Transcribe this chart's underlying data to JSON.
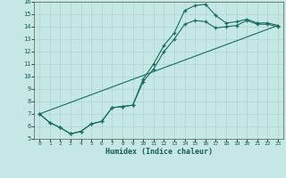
{
  "xlabel": "Humidex (Indice chaleur)",
  "ylabel": "",
  "bg_color": "#c5e8e5",
  "grid_color": "#afd4d0",
  "line_color": "#1a6b5e",
  "xlim": [
    -0.5,
    23.5
  ],
  "ylim": [
    5,
    16
  ],
  "xticks": [
    0,
    1,
    2,
    3,
    4,
    5,
    6,
    7,
    8,
    9,
    10,
    11,
    12,
    13,
    14,
    15,
    16,
    17,
    18,
    19,
    20,
    21,
    22,
    23
  ],
  "yticks": [
    5,
    6,
    7,
    8,
    9,
    10,
    11,
    12,
    13,
    14,
    15,
    16
  ],
  "line1_x": [
    0,
    1,
    2,
    3,
    4,
    5,
    6,
    7,
    8,
    9,
    10,
    11,
    12,
    13,
    14,
    15,
    16,
    17,
    18,
    19,
    20,
    21,
    22,
    23
  ],
  "line1_y": [
    7.0,
    6.3,
    5.9,
    5.4,
    5.6,
    6.2,
    6.4,
    7.5,
    7.6,
    7.7,
    9.8,
    11.0,
    12.5,
    13.5,
    15.3,
    15.7,
    15.8,
    14.9,
    14.3,
    14.4,
    14.6,
    14.3,
    14.3,
    14.1
  ],
  "line2_x": [
    0,
    1,
    2,
    3,
    4,
    5,
    6,
    7,
    8,
    9,
    10,
    11,
    12,
    13,
    14,
    15,
    16,
    17,
    18,
    19,
    20,
    21,
    22,
    23
  ],
  "line2_y": [
    7.0,
    6.3,
    5.9,
    5.4,
    5.6,
    6.2,
    6.4,
    7.5,
    7.6,
    7.7,
    9.6,
    10.6,
    12.0,
    13.0,
    14.2,
    14.5,
    14.4,
    13.9,
    14.0,
    14.1,
    14.5,
    14.2,
    14.2,
    14.0
  ],
  "line3_x": [
    0,
    23
  ],
  "line3_y": [
    7.0,
    14.1
  ]
}
